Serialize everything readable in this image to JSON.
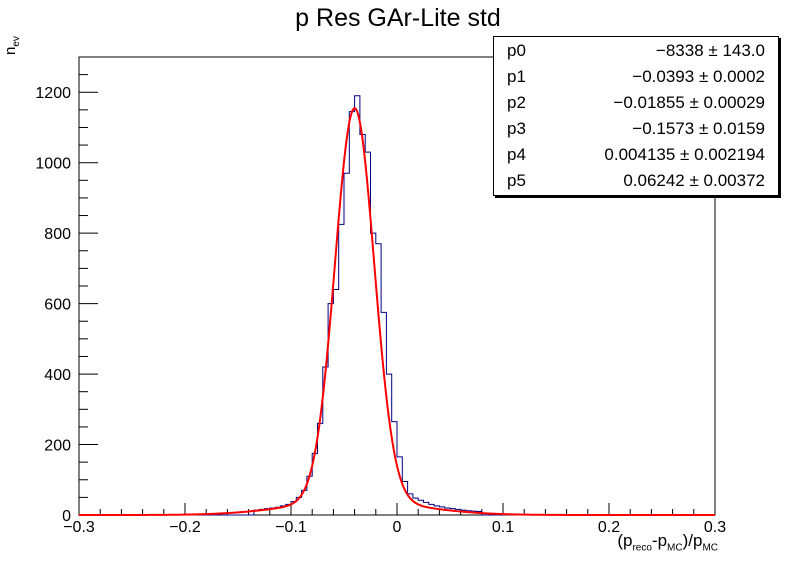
{
  "chart_data": {
    "type": "histogram",
    "title": "p Res GAr-Lite std",
    "xlim": [
      -0.3,
      0.3
    ],
    "ylim": [
      0,
      1300
    ],
    "xticks": [
      "−0.3",
      "−0.2",
      "−0.1",
      "0",
      "0.1",
      "0.2",
      "0.3"
    ],
    "yticks": [
      "0",
      "200",
      "400",
      "600",
      "800",
      "1000",
      "1200"
    ],
    "ylabel": {
      "main": "n",
      "sub": "ev"
    },
    "xlabel": {
      "p1": "(p",
      "s1": "reco",
      "p2": "-p",
      "s2": "MC",
      "p3": ")/p",
      "s3": "MC"
    },
    "histogram": {
      "bin_width": 0.005,
      "color": "#000080",
      "bins": [
        [
          -0.135,
          14
        ],
        [
          -0.13,
          16
        ],
        [
          -0.125,
          18
        ],
        [
          -0.12,
          20
        ],
        [
          -0.115,
          22
        ],
        [
          -0.11,
          26
        ],
        [
          -0.105,
          30
        ],
        [
          -0.1,
          38
        ],
        [
          -0.095,
          50
        ],
        [
          -0.09,
          70
        ],
        [
          -0.085,
          110
        ],
        [
          -0.08,
          175
        ],
        [
          -0.075,
          260
        ],
        [
          -0.07,
          420
        ],
        [
          -0.065,
          600
        ],
        [
          -0.06,
          640
        ],
        [
          -0.055,
          825
        ],
        [
          -0.05,
          970
        ],
        [
          -0.045,
          1145
        ],
        [
          -0.04,
          1190
        ],
        [
          -0.035,
          1080
        ],
        [
          -0.03,
          1030
        ],
        [
          -0.025,
          800
        ],
        [
          -0.02,
          770
        ],
        [
          -0.015,
          575
        ],
        [
          -0.01,
          400
        ],
        [
          -0.005,
          265
        ],
        [
          0.0,
          165
        ],
        [
          0.005,
          95
        ],
        [
          0.01,
          60
        ],
        [
          0.015,
          48
        ],
        [
          0.02,
          42
        ],
        [
          0.025,
          36
        ],
        [
          0.03,
          30
        ],
        [
          0.035,
          26
        ],
        [
          0.04,
          23
        ],
        [
          0.045,
          20
        ],
        [
          0.05,
          18
        ],
        [
          0.055,
          16
        ],
        [
          0.06,
          14
        ],
        [
          0.065,
          12
        ],
        [
          0.07,
          11
        ],
        [
          0.075,
          10
        ]
      ]
    },
    "fit": {
      "color": "#ff0000",
      "params": {
        "p0": -8338,
        "p1": -0.0393,
        "p2": -0.01855,
        "p3": -0.1573,
        "p4": 0.004135,
        "p5": 0.06242
      },
      "peak": 1115,
      "mu": -0.04,
      "sigma": 0.0185,
      "tail_amp": 40,
      "tail_sigma": 0.06
    },
    "stats": [
      {
        "name": "p0",
        "value": "−8338 ± 143.0"
      },
      {
        "name": "p1",
        "value": "−0.0393 ± 0.0002"
      },
      {
        "name": "p2",
        "value": "−0.01855 ± 0.00029"
      },
      {
        "name": "p3",
        "value": "−0.1573 ± 0.0159"
      },
      {
        "name": "p4",
        "value": "0.004135 ± 0.002194"
      },
      {
        "name": "p5",
        "value": "0.06242 ± 0.00372"
      }
    ]
  }
}
